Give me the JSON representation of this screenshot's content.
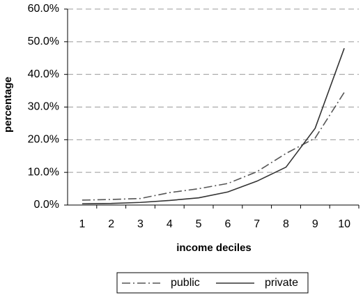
{
  "chart_data": {
    "type": "line",
    "x_label": "income deciles",
    "y_label": "percentage",
    "categories": [
      "1",
      "2",
      "3",
      "4",
      "5",
      "6",
      "7",
      "8",
      "9",
      "10"
    ],
    "series": [
      {
        "name": "public",
        "color": "#555555",
        "dash": "12,4,2,4",
        "values": [
          1.5,
          1.7,
          2.0,
          3.8,
          5.0,
          6.6,
          10.2,
          15.8,
          20.5,
          34.5
        ]
      },
      {
        "name": "private",
        "color": "#333333",
        "dash": "none",
        "values": [
          0.4,
          0.5,
          0.8,
          1.4,
          2.2,
          4.0,
          7.3,
          11.6,
          23.5,
          48.0
        ]
      }
    ],
    "ylim": [
      0,
      60
    ],
    "yticks": [
      {
        "value": 0,
        "label": "0.0%"
      },
      {
        "value": 10,
        "label": "10.0%"
      },
      {
        "value": 20,
        "label": "20.0%"
      },
      {
        "value": 30,
        "label": "30.0%"
      },
      {
        "value": 40,
        "label": "40.0%"
      },
      {
        "value": 50,
        "label": "50.0%"
      },
      {
        "value": 60,
        "label": "60.0%"
      }
    ],
    "grid": true,
    "legend": "bottom"
  }
}
